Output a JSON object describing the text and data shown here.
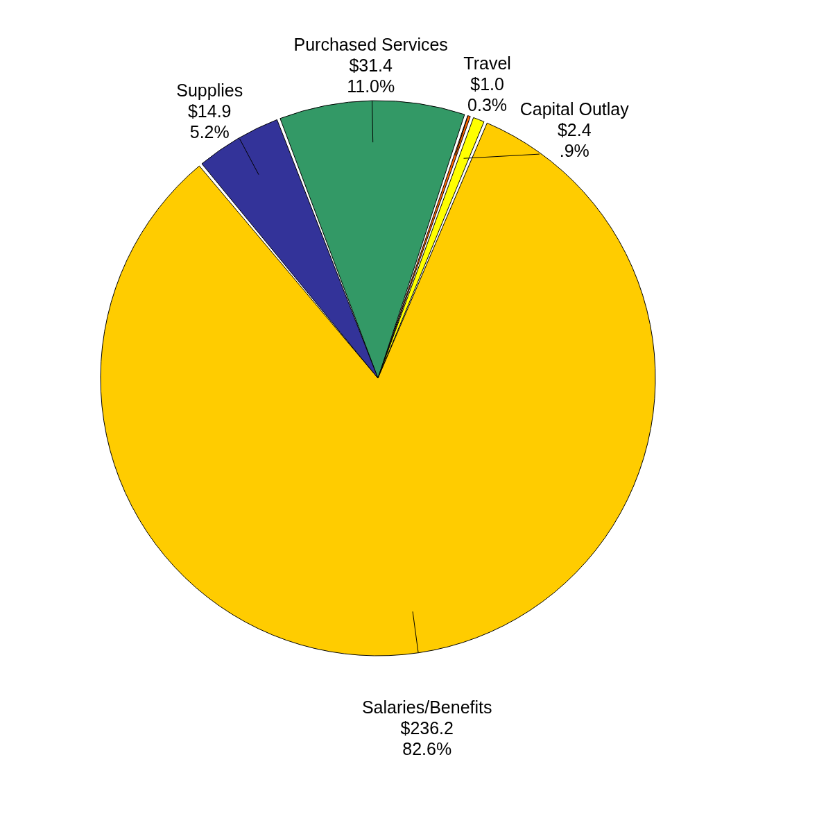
{
  "chart_data": {
    "type": "pie",
    "categories": [
      "Purchased Services",
      "Travel",
      "Capital Outlay",
      "Salaries/Benefits",
      "Supplies"
    ],
    "values": [
      31.4,
      1.0,
      2.4,
      236.2,
      14.9
    ],
    "colors": [
      "#339966",
      "#ff6600",
      "#ffff00",
      "#ffcc00",
      "#333399"
    ],
    "value_labels": [
      "$31.4\n11.0%",
      "$1.0\n0.3%",
      "$2.4\n.9%",
      "$236.2\n82.6%",
      "$14.9\n5.2%"
    ],
    "legend": false
  }
}
